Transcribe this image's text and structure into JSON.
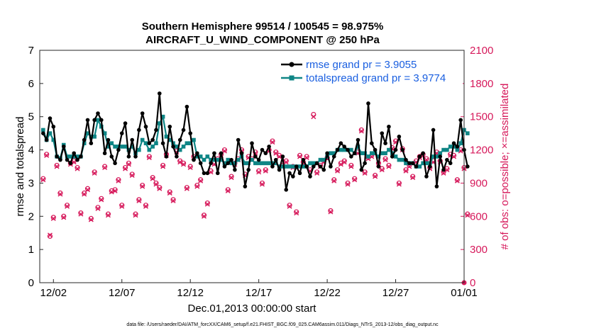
{
  "chart_data": {
    "type": "line",
    "title": "Southern Hemisphere 99514 / 100545 = 98.975%",
    "subtitle": "AIRCRAFT_U_WIND_COMPONENT @ 250 hPa",
    "xlabel": "Dec.01,2013 00:00:00 start",
    "ylabel": "rmse and totalspread",
    "y2label": "# of obs: o=possible; ×=assimilated",
    "xlim": [
      0,
      124
    ],
    "ylim": [
      0,
      7
    ],
    "y2lim": [
      0,
      2100
    ],
    "x_ticks": [
      {
        "x": 4,
        "label": "12/02"
      },
      {
        "x": 24,
        "label": "12/07"
      },
      {
        "x": 44,
        "label": "12/12"
      },
      {
        "x": 64,
        "label": "12/17"
      },
      {
        "x": 84,
        "label": "12/22"
      },
      {
        "x": 104,
        "label": "12/27"
      },
      {
        "x": 124,
        "label": "01/01"
      }
    ],
    "y_ticks": [
      "0",
      "1",
      "2",
      "3",
      "4",
      "5",
      "6",
      "7"
    ],
    "y2_ticks": [
      "0",
      "300",
      "600",
      "900",
      "1200",
      "1500",
      "1800",
      "2100"
    ],
    "legend_position": "top-right",
    "footnote": "data file: /Users/raeder/DAI/ATM_forcXX/CAM6_setup/f.e21.FHIST_BGC.f09_025.CAM6assim.011/Diags_NTrS_2013-12/obs_diag_output.nc",
    "colors": {
      "rmse": "#000000",
      "spread": "#0e8585",
      "obs": "#d6185a",
      "legend_text": "#1a5fe0",
      "right_axis": "#d6185a"
    },
    "series": [
      {
        "name": "rmse grand pr = 3.9055",
        "start": 1,
        "values": [
          4.5,
          4.3,
          4.95,
          4.7,
          3.8,
          3.7,
          4.1,
          3.7,
          3.6,
          3.9,
          3.7,
          3.8,
          4.3,
          4.9,
          4.2,
          4.9,
          5.1,
          4.9,
          3.9,
          4.3,
          3.8,
          3.6,
          4.0,
          4.5,
          4.8,
          3.8,
          4.3,
          3.8,
          4.6,
          5.1,
          4.7,
          4.2,
          4.3,
          4.6,
          5.7,
          4.2,
          3.8,
          4.7,
          4.1,
          3.8,
          4.3,
          4.6,
          5.3,
          4.5,
          3.7,
          3.9,
          3.6,
          3.3,
          3.3,
          3.6,
          3.9,
          3.3,
          3.9,
          3.5,
          3.6,
          3.7,
          3.4,
          4.3,
          3.9,
          2.9,
          3.4,
          4.2,
          3.8,
          3.7,
          4.0,
          3.9,
          4.1,
          3.5,
          3.7,
          3.4,
          3.8,
          2.8,
          3.3,
          3.2,
          3.5,
          3.3,
          3.7,
          3.5,
          3.2,
          3.5,
          3.6,
          3.5,
          3.4,
          3.9,
          3.5,
          3.8,
          4.0,
          4.2,
          4.1,
          4.0,
          3.8,
          3.9,
          4.3,
          3.4,
          3.6,
          5.4,
          4.2,
          4.0,
          3.5,
          4.5,
          4.2,
          4.7,
          3.8,
          4.0,
          4.4,
          4.0,
          3.7,
          3.6,
          3.6,
          3.5,
          3.8,
          3.9,
          3.2,
          3.5,
          4.6,
          2.9,
          3.8,
          3.4,
          3.7,
          3.6,
          4.2,
          4.1,
          4.9,
          4.0,
          3.5
        ]
      },
      {
        "name": "totalspread grand pr = 3.9774",
        "start": 1,
        "values": [
          4.6,
          4.3,
          4.5,
          4.3,
          3.8,
          3.75,
          4.15,
          3.8,
          3.8,
          3.8,
          3.8,
          3.8,
          4.2,
          4.5,
          4.4,
          4.4,
          4.9,
          4.7,
          4.5,
          4.1,
          4.2,
          4.1,
          4.1,
          4.1,
          4.1,
          4.0,
          4.1,
          3.9,
          4.0,
          4.3,
          4.2,
          4.0,
          4.1,
          4.2,
          4.8,
          5.0,
          4.4,
          4.3,
          4.2,
          4.1,
          4.0,
          4.1,
          4.2,
          4.2,
          4.3,
          3.8,
          3.8,
          3.7,
          3.8,
          3.7,
          3.7,
          3.7,
          3.7,
          3.6,
          3.7,
          3.6,
          3.6,
          3.7,
          3.8,
          3.6,
          3.6,
          3.7,
          3.6,
          3.6,
          3.6,
          3.6,
          3.6,
          3.6,
          3.6,
          3.5,
          3.5,
          3.5,
          3.5,
          3.5,
          3.5,
          3.5,
          3.5,
          3.5,
          3.6,
          3.6,
          3.6,
          3.7,
          3.7,
          3.8,
          3.9,
          3.9,
          4.0,
          4.0,
          4.0,
          4.0,
          4.0,
          3.9,
          4.1,
          3.9,
          3.9,
          3.8,
          3.9,
          3.9,
          3.8,
          3.9,
          3.9,
          4.0,
          3.9,
          3.8,
          3.7,
          3.7,
          3.6,
          3.6,
          3.6,
          3.5,
          3.5,
          3.6,
          3.6,
          3.6,
          3.8,
          3.8,
          3.9,
          4.0,
          4.0,
          4.1,
          4.1,
          4.0,
          4.2,
          4.6,
          4.5
        ]
      }
    ],
    "obs_possible": {
      "start": 1,
      "values": [
        940,
        1160,
        420,
        590,
        1060,
        810,
        600,
        700,
        1080,
        1100,
        1040,
        630,
        810,
        850,
        580,
        1000,
        680,
        760,
        1050,
        620,
        830,
        840,
        930,
        700,
        1040,
        1080,
        980,
        620,
        750,
        880,
        700,
        1140,
        950,
        900,
        860,
        1060,
        1160,
        820,
        750,
        1190,
        1100,
        1080,
        860,
        1050,
        1140,
        880,
        930,
        610,
        720,
        1010,
        1080,
        1120,
        1160,
        1200,
        840,
        960,
        1080,
        1120,
        1200,
        980,
        1140,
        1120,
        1180,
        1010,
        900,
        1020,
        1200,
        1280,
        1180,
        1150,
        1060,
        1100,
        700,
        1050,
        640,
        1150,
        1090,
        1140,
        1020,
        1520,
        1000,
        1060,
        1100,
        1130,
        650,
        930,
        1020,
        1080,
        1100,
        900,
        1060,
        940,
        1180,
        1380,
        1000,
        1130,
        1150,
        970,
        1080,
        1030,
        1120,
        1060,
        1220,
        1280,
        900,
        1210,
        1020,
        1060,
        960,
        1100,
        1140,
        1160,
        1120,
        1040,
        1100,
        1180,
        1100,
        1000,
        1030,
        1160,
        1150,
        930,
        1200,
        1040,
        620
      ]
    },
    "obs_assimilated": {
      "start": 1,
      "values": [
        930,
        1150,
        430,
        580,
        1050,
        800,
        590,
        690,
        1070,
        1090,
        1030,
        620,
        800,
        840,
        570,
        990,
        670,
        750,
        1040,
        610,
        820,
        830,
        920,
        690,
        1030,
        1070,
        970,
        610,
        740,
        870,
        690,
        1130,
        940,
        890,
        850,
        1050,
        1150,
        810,
        740,
        1180,
        1090,
        1070,
        850,
        1040,
        1130,
        870,
        920,
        600,
        710,
        1000,
        1070,
        1110,
        1150,
        1190,
        830,
        950,
        1070,
        1110,
        1190,
        970,
        1130,
        1110,
        1170,
        1000,
        890,
        1010,
        1190,
        1270,
        1170,
        1140,
        1050,
        1090,
        690,
        1040,
        630,
        1140,
        1080,
        1130,
        1010,
        1500,
        990,
        1050,
        1090,
        1120,
        640,
        920,
        1010,
        1070,
        1090,
        890,
        1050,
        930,
        1170,
        1370,
        990,
        1120,
        1140,
        960,
        1070,
        1020,
        1110,
        1050,
        1210,
        1270,
        890,
        1200,
        1010,
        1050,
        950,
        1090,
        1130,
        1150,
        1110,
        1030,
        1090,
        1170,
        1090,
        990,
        1020,
        1150,
        1140,
        920,
        1190,
        1030,
        610
      ]
    }
  }
}
